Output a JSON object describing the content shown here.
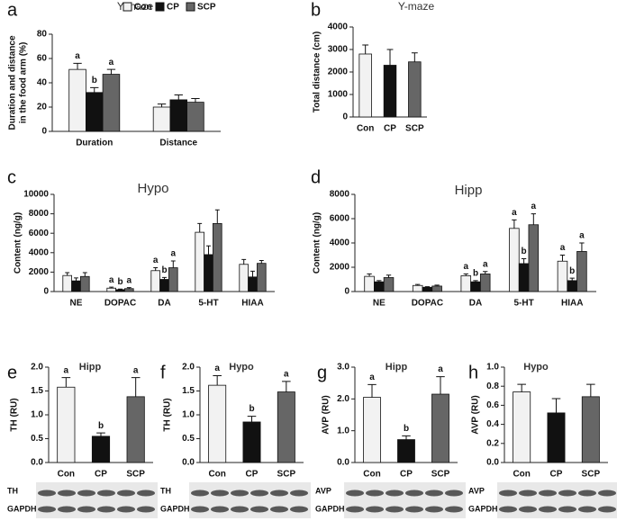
{
  "chart_data": [
    {
      "type": "bar",
      "panel": "a",
      "title": "Y-maze",
      "y_label": [
        "Duration and distance",
        "in the  food arm (%)"
      ],
      "categories": [
        "Duration",
        "Distance"
      ],
      "ylim": [
        0,
        80
      ],
      "yticks": [
        0,
        20,
        40,
        60,
        80
      ],
      "legend": "top-right",
      "series": [
        {
          "name": "Con",
          "color": "#f2f2f2",
          "values": [
            51,
            20
          ],
          "errors": [
            5,
            2.5
          ],
          "letters": [
            "a",
            null
          ]
        },
        {
          "name": "CP",
          "color": "#111111",
          "values": [
            32,
            26
          ],
          "errors": [
            4,
            4
          ],
          "letters": [
            "b",
            null
          ]
        },
        {
          "name": "SCP",
          "color": "#666666",
          "values": [
            47,
            24
          ],
          "errors": [
            4,
            3
          ],
          "letters": [
            "a",
            null
          ]
        }
      ]
    },
    {
      "type": "bar",
      "panel": "b",
      "title": "Y-maze",
      "y_label": [
        "Total distance (cm)"
      ],
      "categories": [
        "Con",
        "CP",
        "SCP"
      ],
      "colors": [
        "#f2f2f2",
        "#111111",
        "#666666"
      ],
      "values": [
        2800,
        2300,
        2450
      ],
      "errors": [
        400,
        700,
        400
      ],
      "ylim": [
        0,
        4000
      ],
      "yticks": [
        0,
        1000,
        2000,
        3000,
        4000
      ]
    },
    {
      "type": "bar",
      "panel": "c",
      "title": "Hypo",
      "y_label": [
        "Content (ng/g)"
      ],
      "categories": [
        "NE",
        "DOPAC",
        "DA",
        "5-HT",
        "HIAA"
      ],
      "ylim": [
        0,
        10000
      ],
      "yticks": [
        0,
        2000,
        4000,
        6000,
        8000,
        10000
      ],
      "series": [
        {
          "name": "Con",
          "color": "#f2f2f2",
          "values": [
            1650,
            350,
            2150,
            6100,
            2800
          ],
          "errors": [
            300,
            100,
            300,
            900,
            500
          ],
          "letters": [
            null,
            "a",
            "a",
            null,
            null
          ]
        },
        {
          "name": "CP",
          "color": "#111111",
          "values": [
            1100,
            200,
            1250,
            3800,
            1500
          ],
          "errors": [
            300,
            50,
            200,
            900,
            600
          ],
          "letters": [
            null,
            "b",
            "b",
            null,
            null
          ]
        },
        {
          "name": "SCP",
          "color": "#666666",
          "values": [
            1550,
            300,
            2450,
            7000,
            2900
          ],
          "errors": [
            400,
            100,
            700,
            1400,
            300
          ],
          "letters": [
            null,
            "a",
            "a",
            null,
            null
          ]
        }
      ]
    },
    {
      "type": "bar",
      "panel": "d",
      "title": "Hipp",
      "y_label": [
        "Content (ng/g)"
      ],
      "categories": [
        "NE",
        "DOPAC",
        "DA",
        "5-HT",
        "HIAA"
      ],
      "ylim": [
        0,
        8000
      ],
      "yticks": [
        0,
        2000,
        4000,
        6000,
        8000
      ],
      "series": [
        {
          "name": "Con",
          "color": "#f2f2f2",
          "values": [
            1250,
            500,
            1300,
            5200,
            2500
          ],
          "errors": [
            200,
            80,
            150,
            700,
            500
          ],
          "letters": [
            null,
            null,
            "a",
            "a",
            "a"
          ]
        },
        {
          "name": "CP",
          "color": "#111111",
          "values": [
            800,
            350,
            800,
            2300,
            900
          ],
          "errors": [
            100,
            50,
            100,
            400,
            200
          ],
          "letters": [
            null,
            null,
            "b",
            "b",
            "b"
          ]
        },
        {
          "name": "SCP",
          "color": "#666666",
          "values": [
            1150,
            450,
            1450,
            5500,
            3300
          ],
          "errors": [
            200,
            80,
            200,
            900,
            700
          ],
          "letters": [
            null,
            null,
            "a",
            "a",
            "a"
          ]
        }
      ]
    },
    {
      "type": "bar",
      "panel": "e",
      "title": "Hipp",
      "y_label": [
        "TH (RU)"
      ],
      "categories": [
        "Con",
        "CP",
        "SCP"
      ],
      "colors": [
        "#f2f2f2",
        "#111111",
        "#666666"
      ],
      "values": [
        1.58,
        0.55,
        1.38
      ],
      "errors": [
        0.2,
        0.07,
        0.4
      ],
      "letters": [
        "a",
        "b",
        "a"
      ],
      "ylim": [
        0,
        2
      ],
      "yticks": [
        {
          "value": 0,
          "label": "0.0"
        },
        0.5,
        {
          "value": 1,
          "label": "1.0"
        },
        1.5,
        {
          "value": 2,
          "label": "2.0"
        }
      ],
      "blot": [
        "TH",
        "GAPDH"
      ]
    },
    {
      "type": "bar",
      "panel": "f",
      "title": "Hypo",
      "y_label": [
        "TH (RU)"
      ],
      "categories": [
        "Con",
        "CP",
        "SCP"
      ],
      "colors": [
        "#f2f2f2",
        "#111111",
        "#666666"
      ],
      "values": [
        1.62,
        0.85,
        1.48
      ],
      "errors": [
        0.2,
        0.12,
        0.22
      ],
      "letters": [
        "a",
        "b",
        "a"
      ],
      "ylim": [
        0,
        2
      ],
      "yticks": [
        {
          "value": 0,
          "label": "0.0"
        },
        0.5,
        {
          "value": 1,
          "label": "1.0"
        },
        1.5,
        {
          "value": 2,
          "label": "2.0"
        }
      ],
      "blot": [
        "TH",
        "GAPDH"
      ]
    },
    {
      "type": "bar",
      "panel": "g",
      "title": "Hipp",
      "y_label": [
        "AVP (RU)"
      ],
      "categories": [
        "Con",
        "CP",
        "SCP"
      ],
      "colors": [
        "#f2f2f2",
        "#111111",
        "#666666"
      ],
      "values": [
        2.05,
        0.72,
        2.15
      ],
      "errors": [
        0.4,
        0.12,
        0.55
      ],
      "letters": [
        "a",
        "b",
        "a"
      ],
      "ylim": [
        0,
        3
      ],
      "yticks": [
        {
          "value": 0,
          "label": "0.0"
        },
        {
          "value": 1,
          "label": "1.0"
        },
        {
          "value": 2,
          "label": "2.0"
        },
        {
          "value": 3,
          "label": "3.0"
        }
      ],
      "blot": [
        "AVP",
        "GAPDH"
      ]
    },
    {
      "type": "bar",
      "panel": "h",
      "title": "Hypo",
      "y_label": [
        "AVP (RU)"
      ],
      "categories": [
        "Con",
        "CP",
        "SCP"
      ],
      "colors": [
        "#f2f2f2",
        "#111111",
        "#666666"
      ],
      "values": [
        0.74,
        0.52,
        0.69
      ],
      "errors": [
        0.08,
        0.15,
        0.13
      ],
      "ylim": [
        0,
        1
      ],
      "yticks": [
        {
          "value": 0,
          "label": "0.0"
        },
        0.2,
        0.4,
        0.6,
        0.8,
        {
          "value": 1,
          "label": "1.0"
        }
      ],
      "blot": [
        "AVP",
        "GAPDH"
      ]
    }
  ]
}
